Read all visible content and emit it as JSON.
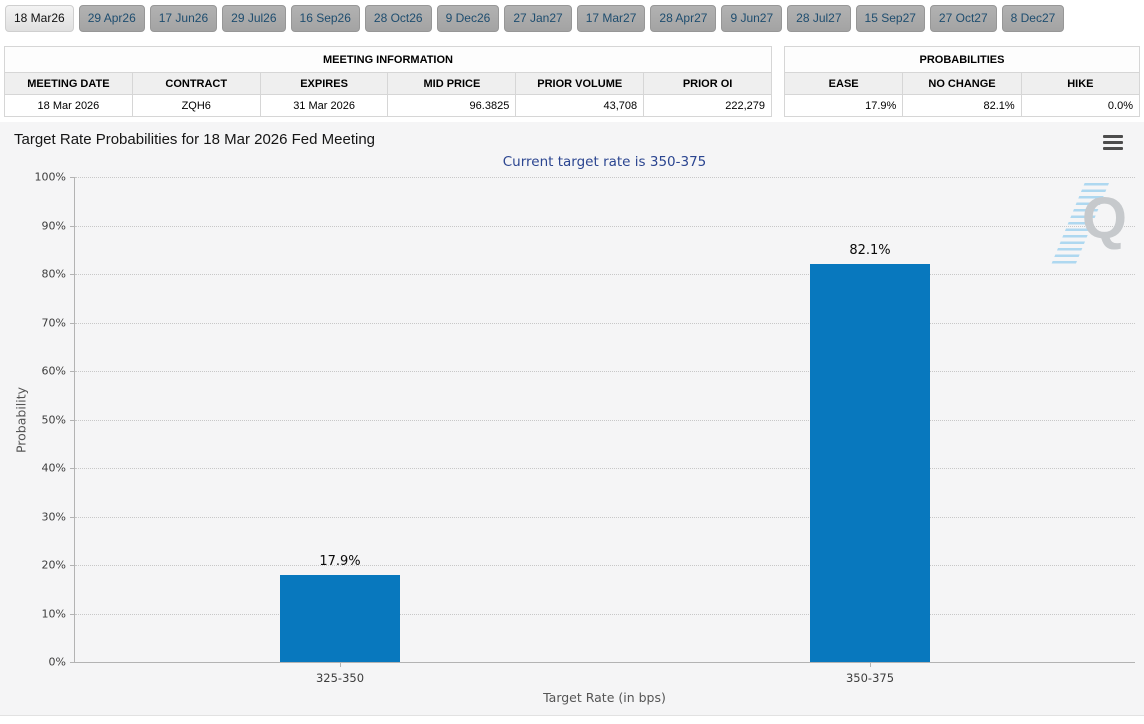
{
  "page": {
    "tabs": [
      {
        "label": "18 Mar26",
        "active": true
      },
      {
        "label": "29 Apr26",
        "active": false
      },
      {
        "label": "17 Jun26",
        "active": false
      },
      {
        "label": "29 Jul26",
        "active": false
      },
      {
        "label": "16 Sep26",
        "active": false
      },
      {
        "label": "28 Oct26",
        "active": false
      },
      {
        "label": "9 Dec26",
        "active": false
      },
      {
        "label": "27 Jan27",
        "active": false
      },
      {
        "label": "17 Mar27",
        "active": false
      },
      {
        "label": "28 Apr27",
        "active": false
      },
      {
        "label": "9 Jun27",
        "active": false
      },
      {
        "label": "28 Jul27",
        "active": false
      },
      {
        "label": "15 Sep27",
        "active": false
      },
      {
        "label": "27 Oct27",
        "active": false
      },
      {
        "label": "8 Dec27",
        "active": false
      }
    ]
  },
  "meeting_info": {
    "title": "MEETING INFORMATION",
    "columns": [
      "MEETING DATE",
      "CONTRACT",
      "EXPIRES",
      "MID PRICE",
      "PRIOR VOLUME",
      "PRIOR OI"
    ],
    "row": [
      "18 Mar 2026",
      "ZQH6",
      "31 Mar 2026",
      "96.3825",
      "43,708",
      "222,279"
    ]
  },
  "probabilities": {
    "title": "PROBABILITIES",
    "columns": [
      "EASE",
      "NO CHANGE",
      "HIKE"
    ],
    "row": [
      "17.9%",
      "82.1%",
      "0.0%"
    ]
  },
  "chart_data": {
    "type": "bar",
    "title": "Target Rate Probabilities for 18 Mar 2026 Fed Meeting",
    "subtitle": "Current target rate is 350-375",
    "categories": [
      "325-350",
      "350-375"
    ],
    "values": [
      17.9,
      82.1
    ],
    "value_labels": [
      "17.9%",
      "82.1%"
    ],
    "xlabel": "Target Rate (in bps)",
    "ylabel": "Probability",
    "ylim": [
      0,
      100
    ],
    "ytick_step": 10,
    "ytick_suffix": "%",
    "grid": "dotted-horizontal",
    "legend": false,
    "watermark_letter": "Q"
  },
  "colors": {
    "bar": "#0878be",
    "subtitle_text": "#2b4590",
    "tab_text": "#1e4d6f",
    "panel_bg": "#f5f5f6"
  }
}
